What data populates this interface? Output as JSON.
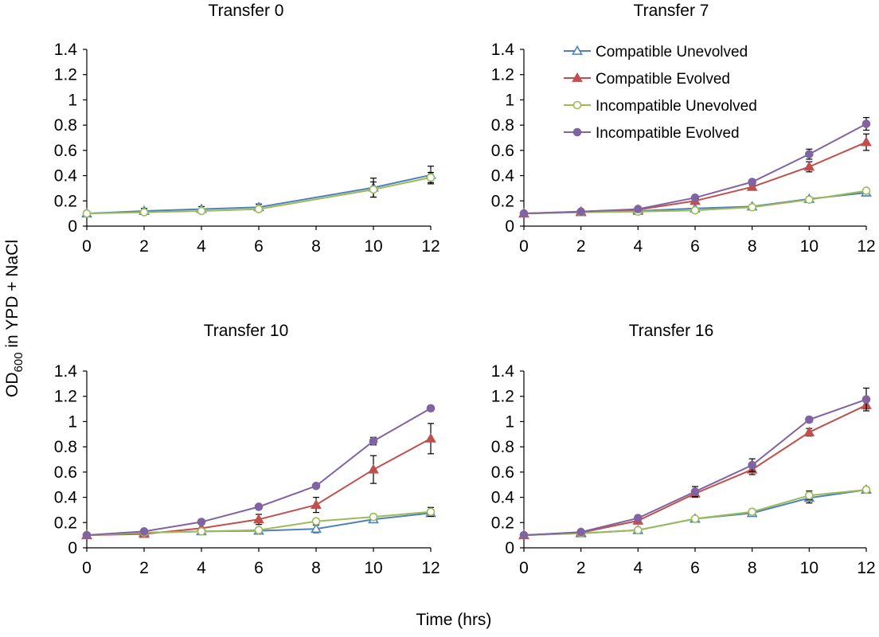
{
  "figure": {
    "xlabel": "Time (hrs)",
    "ylabel_main": "OD",
    "ylabel_sub": "600",
    "ylabel_rest": " in YPD + NaCl"
  },
  "legend": {
    "placement": "top-right of Transfer 7 panel",
    "entries": [
      {
        "name": "Compatible Unevolved",
        "color": "#4f81bd",
        "marker": "triangle-open"
      },
      {
        "name": "Compatible Evolved",
        "color": "#c0504d",
        "marker": "triangle-filled"
      },
      {
        "name": "Incompatible Unevolved",
        "color": "#9bbb59",
        "marker": "circle-open"
      },
      {
        "name": "Incompatible Evolved",
        "color": "#8064a2",
        "marker": "circle-filled"
      }
    ]
  },
  "chart_data": [
    {
      "type": "line",
      "title": "Transfer 0",
      "x": [
        0,
        2,
        4,
        6,
        8,
        10,
        12
      ],
      "xticks": [
        "0",
        "2",
        "4",
        "6",
        "8",
        "10",
        "12"
      ],
      "yticks": [
        "0",
        "0.2",
        "0.4",
        "0.6",
        "0.8",
        "1",
        "1.2",
        "1.4"
      ],
      "ylim": [
        0,
        1.4
      ],
      "xlim": [
        0,
        12
      ],
      "series": [
        {
          "name": "Compatible Unevolved",
          "x": [
            0,
            2,
            4,
            6,
            10,
            12
          ],
          "values": [
            0.1,
            0.12,
            0.135,
            0.15,
            0.305,
            0.405
          ],
          "err": [
            0.01,
            0.02,
            0.02,
            0.025,
            0.075,
            0.07
          ]
        },
        {
          "name": "Incompatible Unevolved",
          "x": [
            0,
            2,
            4,
            6,
            10,
            12
          ],
          "values": [
            0.1,
            0.11,
            0.12,
            0.135,
            0.29,
            0.385
          ],
          "err": [
            0.01,
            0.015,
            0.015,
            0.02,
            0.06,
            0.04
          ]
        }
      ]
    },
    {
      "type": "line",
      "title": "Transfer 7",
      "x": [
        0,
        2,
        4,
        6,
        8,
        10,
        12
      ],
      "xticks": [
        "0",
        "2",
        "4",
        "6",
        "8",
        "10",
        "12"
      ],
      "yticks": [
        "0",
        "0.2",
        "0.4",
        "0.6",
        "0.8",
        "1",
        "1.2",
        "1.4"
      ],
      "ylim": [
        0,
        1.4
      ],
      "xlim": [
        0,
        12
      ],
      "series": [
        {
          "name": "Compatible Unevolved",
          "x": [
            0,
            2,
            4,
            6,
            8,
            10,
            12
          ],
          "values": [
            0.1,
            0.11,
            0.12,
            0.14,
            0.155,
            0.215,
            0.265
          ],
          "err": [
            0.005,
            0.01,
            0.01,
            0.01,
            0.01,
            0.015,
            0.015
          ]
        },
        {
          "name": "Compatible Evolved",
          "x": [
            0,
            2,
            4,
            6,
            8,
            10,
            12
          ],
          "values": [
            0.1,
            0.115,
            0.13,
            0.2,
            0.31,
            0.47,
            0.665
          ],
          "err": [
            0.005,
            0.01,
            0.01,
            0.01,
            0.015,
            0.04,
            0.065
          ]
        },
        {
          "name": "Incompatible Unevolved",
          "x": [
            0,
            2,
            4,
            6,
            8,
            10,
            12
          ],
          "values": [
            0.1,
            0.11,
            0.115,
            0.125,
            0.15,
            0.21,
            0.28
          ],
          "err": [
            0.005,
            0.01,
            0.01,
            0.01,
            0.01,
            0.015,
            0.015
          ]
        },
        {
          "name": "Incompatible Evolved",
          "x": [
            0,
            2,
            4,
            6,
            8,
            10,
            12
          ],
          "values": [
            0.1,
            0.115,
            0.135,
            0.225,
            0.35,
            0.57,
            0.81
          ],
          "err": [
            0.005,
            0.01,
            0.01,
            0.01,
            0.015,
            0.04,
            0.05
          ]
        }
      ]
    },
    {
      "type": "line",
      "title": "Transfer 10",
      "x": [
        0,
        2,
        4,
        6,
        8,
        10,
        12
      ],
      "xticks": [
        "0",
        "2",
        "4",
        "6",
        "8",
        "10",
        "12"
      ],
      "yticks": [
        "0",
        "0.2",
        "0.4",
        "0.6",
        "0.8",
        "1",
        "1.2",
        "1.4"
      ],
      "ylim": [
        0,
        1.4
      ],
      "xlim": [
        0,
        12
      ],
      "series": [
        {
          "name": "Compatible Unevolved",
          "x": [
            0,
            2,
            4,
            6,
            8,
            10,
            12
          ],
          "values": [
            0.1,
            0.12,
            0.13,
            0.135,
            0.15,
            0.225,
            0.275
          ],
          "err": [
            0.005,
            0.01,
            0.01,
            0.01,
            0.03,
            0.02,
            0.02
          ]
        },
        {
          "name": "Compatible Evolved",
          "x": [
            0,
            2,
            4,
            6,
            8,
            10,
            12
          ],
          "values": [
            0.1,
            0.11,
            0.155,
            0.225,
            0.34,
            0.62,
            0.865
          ],
          "err": [
            0.005,
            0.01,
            0.01,
            0.04,
            0.06,
            0.11,
            0.12
          ]
        },
        {
          "name": "Incompatible Unevolved",
          "x": [
            0,
            2,
            4,
            6,
            8,
            10,
            12
          ],
          "values": [
            0.1,
            0.12,
            0.13,
            0.14,
            0.21,
            0.245,
            0.285
          ],
          "err": [
            0.005,
            0.01,
            0.01,
            0.01,
            0.02,
            0.02,
            0.035
          ]
        },
        {
          "name": "Incompatible Evolved",
          "x": [
            0,
            2,
            4,
            6,
            8,
            10,
            12
          ],
          "values": [
            0.1,
            0.13,
            0.205,
            0.325,
            0.49,
            0.845,
            1.105
          ],
          "err": [
            0.005,
            0.01,
            0.01,
            0.01,
            0.015,
            0.03,
            0.02
          ]
        }
      ]
    },
    {
      "type": "line",
      "title": "Transfer 16",
      "x": [
        0,
        2,
        4,
        6,
        8,
        10,
        12
      ],
      "xticks": [
        "0",
        "2",
        "4",
        "6",
        "8",
        "10",
        "12"
      ],
      "yticks": [
        "0",
        "0.2",
        "0.4",
        "0.6",
        "0.8",
        "1",
        "1.2",
        "1.4"
      ],
      "ylim": [
        0,
        1.4
      ],
      "xlim": [
        0,
        12
      ],
      "series": [
        {
          "name": "Compatible Unevolved",
          "x": [
            0,
            2,
            4,
            6,
            8,
            10,
            12
          ],
          "values": [
            0.1,
            0.115,
            0.14,
            0.23,
            0.275,
            0.395,
            0.46
          ],
          "err": [
            0.005,
            0.01,
            0.01,
            0.015,
            0.02,
            0.04,
            0.02
          ]
        },
        {
          "name": "Compatible Evolved",
          "x": [
            0,
            2,
            4,
            6,
            8,
            10,
            12
          ],
          "values": [
            0.1,
            0.12,
            0.215,
            0.43,
            0.62,
            0.915,
            1.13
          ],
          "err": [
            0.005,
            0.01,
            0.02,
            0.03,
            0.04,
            0.03,
            0.03
          ]
        },
        {
          "name": "Incompatible Unevolved",
          "x": [
            0,
            2,
            4,
            6,
            8,
            10,
            12
          ],
          "values": [
            0.1,
            0.115,
            0.14,
            0.23,
            0.285,
            0.415,
            0.46
          ],
          "err": [
            0.005,
            0.01,
            0.01,
            0.015,
            0.02,
            0.035,
            0.02
          ]
        },
        {
          "name": "Incompatible Evolved",
          "x": [
            0,
            2,
            4,
            6,
            8,
            10,
            12
          ],
          "values": [
            0.1,
            0.125,
            0.235,
            0.445,
            0.655,
            1.015,
            1.175
          ],
          "err": [
            0.005,
            0.01,
            0.02,
            0.04,
            0.05,
            0.02,
            0.09
          ]
        }
      ]
    }
  ]
}
